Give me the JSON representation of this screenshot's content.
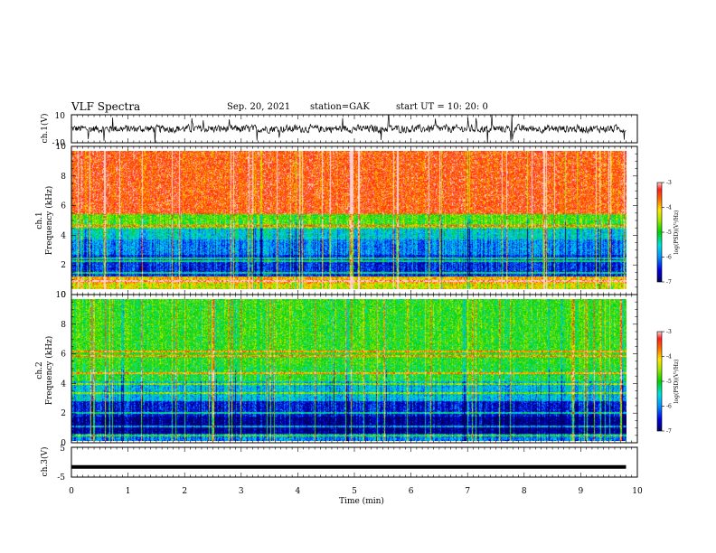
{
  "header": {
    "title": "VLF Spectra",
    "date": "Sep. 20, 2021",
    "station": "station=GAK",
    "start": "start UT =   10: 20: 0"
  },
  "chart_data": [
    {
      "type": "line",
      "panel": "ch1-waveform",
      "ylabel": "ch.1(V)",
      "ylim": [
        -10,
        10
      ],
      "yticks": [
        "10",
        "-10"
      ],
      "xlim": [
        0,
        10
      ],
      "note": "noisy waveform centred near 0 V, amplitude about ±3 V with occasional spikes to ±10 V"
    },
    {
      "type": "heatmap",
      "panel": "ch1-spectrogram",
      "ylabel": "ch.1\nFrequency (kHz)",
      "ylabel_line1": "ch.1",
      "ylabel_line2": "Frequency (kHz)",
      "ylim": [
        0,
        10
      ],
      "yticks": [
        "0",
        "2",
        "4",
        "6",
        "8",
        "10"
      ],
      "xlim": [
        0,
        10
      ],
      "colorbar": {
        "label": "log(PSD)(V²/Hz)",
        "ticks": [
          "-3",
          "-4",
          "-5",
          "-6",
          "-7"
        ],
        "range": [
          -7,
          -3
        ]
      },
      "bands": [
        {
          "f_low": 0,
          "f_high": 0.4,
          "level": -4.3
        },
        {
          "f_low": 0.4,
          "f_high": 0.9,
          "level": -4.0
        },
        {
          "f_low": 0.9,
          "f_high": 2.5,
          "level": -6.4
        },
        {
          "f_low": 2.5,
          "f_high": 3.6,
          "level": -6.0
        },
        {
          "f_low": 3.6,
          "f_high": 4.4,
          "level": -5.6
        },
        {
          "f_low": 4.4,
          "f_high": 5.4,
          "level": -4.8
        },
        {
          "f_low": 5.4,
          "f_high": 10,
          "level": -3.5
        }
      ]
    },
    {
      "type": "heatmap",
      "panel": "ch2-spectrogram",
      "ylabel_line1": "ch.2",
      "ylabel_line2": "Frequency (kHz)",
      "ylim": [
        0,
        10
      ],
      "yticks": [
        "0",
        "2",
        "4",
        "6",
        "8",
        "10"
      ],
      "xlim": [
        0,
        10
      ],
      "colorbar": {
        "label": "log(PSD)(V²/Hz)",
        "ticks": [
          "-3",
          "-4",
          "-5",
          "-6",
          "-7"
        ],
        "range": [
          -7,
          -3
        ]
      },
      "bands": [
        {
          "f_low": 0,
          "f_high": 0.5,
          "level": -6.0
        },
        {
          "f_low": 0.5,
          "f_high": 1.7,
          "level": -6.9
        },
        {
          "f_low": 1.7,
          "f_high": 2.8,
          "level": -6.5
        },
        {
          "f_low": 2.8,
          "f_high": 4.2,
          "level": -5.7
        },
        {
          "f_low": 4.2,
          "f_high": 5.4,
          "level": -5.0
        },
        {
          "f_low": 5.4,
          "f_high": 10,
          "level": -4.9
        }
      ]
    },
    {
      "type": "line",
      "panel": "ch3-waveform",
      "ylabel": "ch.3(V)",
      "ylim": [
        -5,
        5
      ],
      "yticks": [
        "5",
        "-5"
      ],
      "xlim": [
        0,
        10
      ],
      "xlabel": "Time (min)",
      "xticks": [
        "0",
        "1",
        "2",
        "3",
        "4",
        "5",
        "6",
        "7",
        "8",
        "9",
        "10"
      ],
      "level_V": -1.6
    }
  ]
}
